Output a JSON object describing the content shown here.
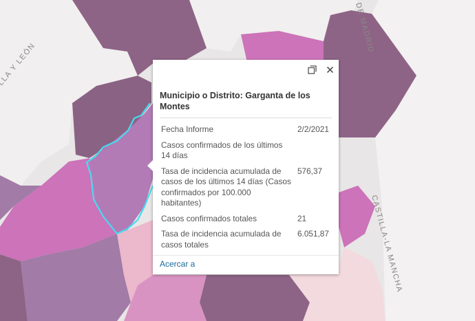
{
  "map": {
    "region_labels": [
      "LLA Y LEÓN",
      "DE MADRID",
      "CASTILLA-LA MANCHA"
    ],
    "colors": {
      "background": "#e8e6e6",
      "pale": "#f1efef",
      "dark_purple": "#8e6486",
      "mid_purple": "#a27ba7",
      "violet": "#b57fb8",
      "magenta": "#cc73b9",
      "pink": "#d993c3",
      "light_pink": "#ecb8cc",
      "pale_pink": "#f2dade",
      "highlight": "#45dcf0"
    }
  },
  "popup": {
    "maximize_icon": "maximize-icon",
    "close_icon": "close-icon",
    "title": "Municipio o Distrito: Garganta de los Montes",
    "rows": [
      {
        "label": "Fecha Informe",
        "value": "2/2/2021"
      },
      {
        "label": "Casos confirmados de los últimos 14 días",
        "value": ""
      },
      {
        "label": "Tasa de incidencia acumulada de casos de los últimos 14 días (Casos confirmados por 100.000 habitantes)",
        "value": "576,37"
      },
      {
        "label": "Casos confirmados totales",
        "value": "21"
      },
      {
        "label": "Tasa de incidencia acumulada de casos totales",
        "value": "6.051,87"
      }
    ],
    "zoom_link": "Acercar a"
  }
}
